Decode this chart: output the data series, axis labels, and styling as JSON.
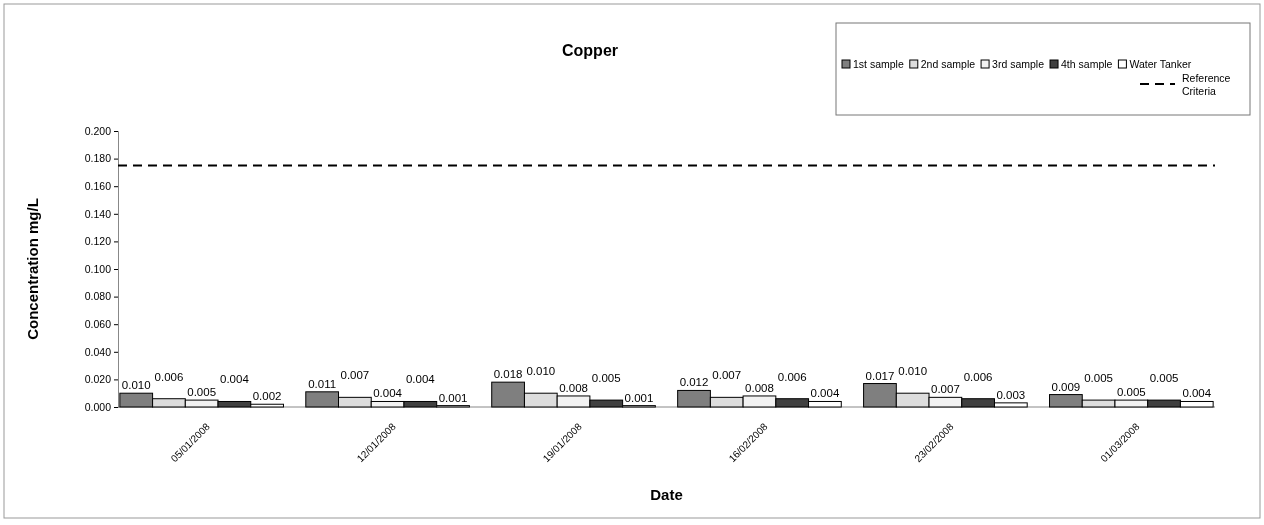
{
  "chart_data": {
    "type": "bar",
    "title": "Copper",
    "xlabel": "Date",
    "ylabel": "Concentration mg/L",
    "categories": [
      "05/01/2008",
      "12/01/2008",
      "19/01/2008",
      "16/02/2008",
      "23/02/2008",
      "01/03/2008"
    ],
    "series": [
      {
        "name": "1st sample",
        "color": "#7f7f7f",
        "values": [
          0.01,
          0.011,
          0.018,
          0.012,
          0.017,
          0.009
        ],
        "value_labels": [
          "0.010",
          "0.011",
          "0.018",
          "0.012",
          "0.017",
          "0.009"
        ]
      },
      {
        "name": "2nd sample",
        "color": "#dddddd",
        "values": [
          0.006,
          0.007,
          0.01,
          0.007,
          0.01,
          0.005
        ],
        "value_labels": [
          "0.006",
          "0.007",
          "0.010",
          "0.007",
          "0.010",
          "0.005"
        ]
      },
      {
        "name": "3rd sample",
        "color": "#f2f2f2",
        "values": [
          0.005,
          0.004,
          0.008,
          0.008,
          0.007,
          0.005
        ],
        "value_labels": [
          "0.005",
          "0.004",
          "0.008",
          "0.008",
          "0.007",
          "0.005"
        ]
      },
      {
        "name": "4th sample",
        "color": "#404040",
        "values": [
          0.004,
          0.004,
          0.005,
          0.006,
          0.006,
          0.005
        ],
        "value_labels": [
          "0.004",
          "0.004",
          "0.005",
          "0.006",
          "0.006",
          "0.005"
        ]
      },
      {
        "name": "Water Tanker",
        "color": "#ffffff",
        "values": [
          0.002,
          0.001,
          0.001,
          0.004,
          0.003,
          0.004
        ],
        "value_labels": [
          "0.002",
          "0.001",
          "0.001",
          "0.004",
          "0.003",
          "0.004"
        ]
      }
    ],
    "ylim": [
      0,
      0.2
    ],
    "yticks": [
      {
        "value": 0,
        "label": "0.000"
      },
      {
        "value": 0.02,
        "label": "0.020"
      },
      {
        "value": 0.04,
        "label": "0.040"
      },
      {
        "value": 0.06,
        "label": "0.060"
      },
      {
        "value": 0.08,
        "label": "0.080"
      },
      {
        "value": 0.1,
        "label": "0.100"
      },
      {
        "value": 0.12,
        "label": "0.120"
      },
      {
        "value": 0.14,
        "label": "0.140"
      },
      {
        "value": 0.16,
        "label": "0.160"
      },
      {
        "value": 0.18,
        "label": "0.180"
      },
      {
        "value": 0.2,
        "label": "0.200"
      }
    ],
    "ref_lines": [
      {
        "axis": "y",
        "value": 0.175,
        "label": "Reference Criteria",
        "color": "#000000",
        "line_style": "dashed"
      }
    ],
    "grid": false,
    "legend": "top right"
  }
}
